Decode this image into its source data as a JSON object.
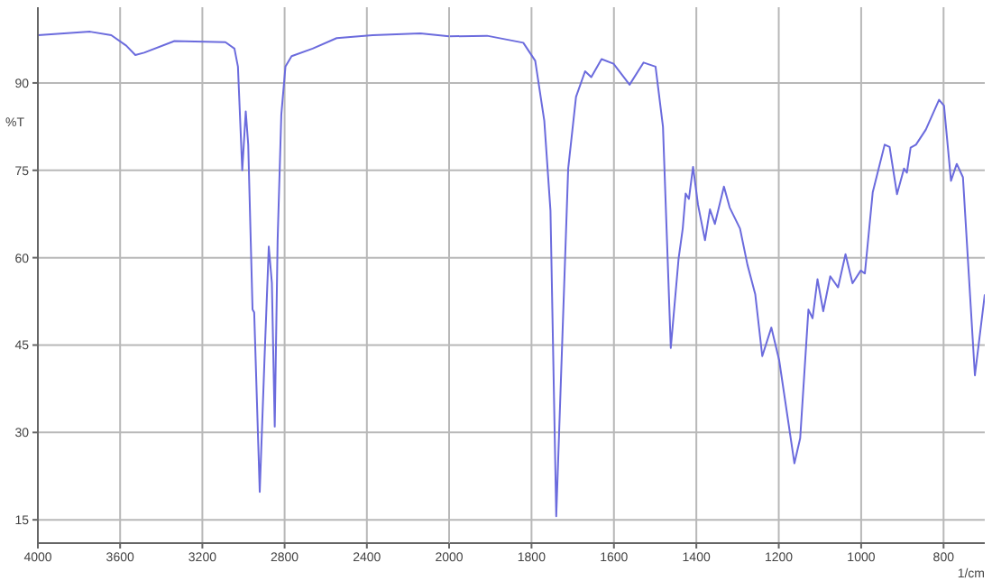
{
  "chart_data": [
    {
      "type": "line",
      "ylabel": "%T",
      "x": [
        4000,
        3746,
        3643,
        3570,
        3526,
        3483,
        3336,
        3088,
        3044,
        3027,
        3006,
        2989,
        2977,
        2956,
        2948,
        2921,
        2898,
        2877,
        2862,
        2848,
        2834,
        2816,
        2796,
        2766,
        2664,
        2547,
        2372,
        2140,
        2000
      ],
      "series": [
        {
          "color": "#6b6bdd",
          "values": [
            98.2,
            98.8,
            98.2,
            96.4,
            94.8,
            95.2,
            97.2,
            97.0,
            95.9,
            92.8,
            75.0,
            85.1,
            79.4,
            51.1,
            50.6,
            19.8,
            42.4,
            61.9,
            55.7,
            31.0,
            63.0,
            84.6,
            92.8,
            94.6,
            95.9,
            97.7,
            98.2,
            98.5,
            98.0
          ]
        }
      ],
      "xlim": [
        4000,
        2000
      ],
      "xticks": [
        4000,
        3600,
        3200,
        2800,
        2400,
        2000
      ],
      "ylim": [
        11,
        103
      ],
      "yticks": [
        15,
        30,
        45,
        60,
        75,
        90
      ],
      "grid": true,
      "legend": false,
      "marker": "none",
      "line_style": "solid"
    },
    {
      "type": "line",
      "xlabel": "1/cm",
      "x": [
        2000,
        1908,
        1820,
        1791,
        1769,
        1754,
        1740,
        1725,
        1711,
        1692,
        1670,
        1655,
        1630,
        1601,
        1562,
        1528,
        1499,
        1481,
        1462,
        1443,
        1433,
        1426,
        1418,
        1408,
        1396,
        1379,
        1367,
        1355,
        1333,
        1319,
        1294,
        1276,
        1257,
        1240,
        1218,
        1199,
        1162,
        1148,
        1128,
        1118,
        1106,
        1092,
        1075,
        1056,
        1038,
        1021,
        1001,
        991,
        972,
        943,
        931,
        913,
        896,
        889,
        880,
        867,
        843,
        811,
        799,
        782,
        768,
        753,
        724,
        700
      ],
      "series": [
        {
          "color": "#6b6bdd",
          "values": [
            98.0,
            98.1,
            96.9,
            93.8,
            83.5,
            68.1,
            15.6,
            46.5,
            75.3,
            87.6,
            92.0,
            91.0,
            94.1,
            93.3,
            89.7,
            93.5,
            92.8,
            82.5,
            44.5,
            59.9,
            65.0,
            71.0,
            70.1,
            75.6,
            69.1,
            63.0,
            68.3,
            65.8,
            72.2,
            68.6,
            65.0,
            58.8,
            53.7,
            43.1,
            48.0,
            42.4,
            24.7,
            29.0,
            51.1,
            49.6,
            56.3,
            50.8,
            56.8,
            54.9,
            60.6,
            55.6,
            57.8,
            57.3,
            71.2,
            79.4,
            79.0,
            70.9,
            75.3,
            74.6,
            78.9,
            79.4,
            82.0,
            87.1,
            86.1,
            73.2,
            76.1,
            73.8,
            39.8,
            53.7
          ]
        }
      ],
      "xlim": [
        2000,
        700
      ],
      "xticks": [
        1800,
        1600,
        1400,
        1200,
        1000,
        800
      ],
      "ylim": [
        11,
        103
      ],
      "yticks": [
        15,
        30,
        45,
        60,
        75,
        90
      ],
      "tick_labels": "x",
      "grid": true,
      "legend": false,
      "marker": "none",
      "line_style": "solid"
    }
  ]
}
